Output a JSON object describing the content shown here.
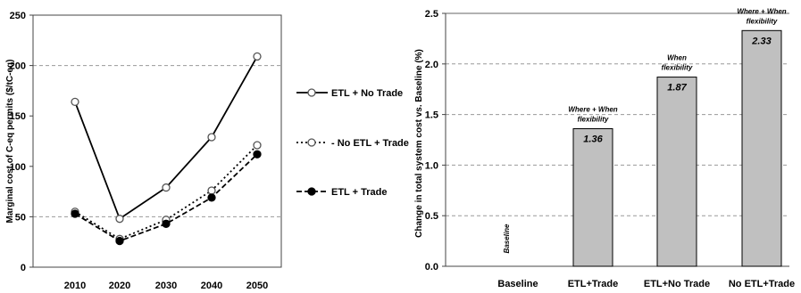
{
  "chart_data": [
    {
      "type": "line",
      "title": "",
      "xlabel": "",
      "ylabel": "Marginal cost of C-eq permits ($/tC-eq)",
      "x": [
        2010,
        2020,
        2030,
        2040,
        2050
      ],
      "x_ticks": [
        "2010",
        "2020",
        "2030",
        "2040",
        "2050"
      ],
      "ylim": [
        0,
        250
      ],
      "y_ticks": [
        "0",
        "50",
        "100",
        "150",
        "200",
        "250"
      ],
      "grid": "horizontal dashed at 50 and 200",
      "legend_position": "right",
      "series": [
        {
          "name": "ETL + No Trade",
          "values": [
            164,
            48,
            79,
            129,
            209
          ],
          "line": "solid",
          "marker": "open circle"
        },
        {
          "name": "- No ETL + Trade",
          "values": [
            55,
            28,
            47,
            76,
            121
          ],
          "line": "dotted",
          "marker": "open circle"
        },
        {
          "name": "ETL + Trade",
          "values": [
            53,
            26,
            43,
            69,
            112
          ],
          "line": "dashed",
          "marker": "filled circle"
        }
      ]
    },
    {
      "type": "bar",
      "title": "",
      "xlabel": "",
      "ylabel": "Change in total system cost vs. Baseline (%)",
      "categories": [
        "Baseline",
        "ETL+Trade",
        "ETL+No Trade",
        "No ETL+Trade"
      ],
      "values": [
        0,
        1.36,
        1.87,
        2.33
      ],
      "value_labels": [
        "",
        "1.36",
        "1.87",
        "2.33"
      ],
      "ylim": [
        0,
        2.5
      ],
      "y_ticks": [
        "0.0",
        "0.5",
        "1.0",
        "1.5",
        "2.0",
        "2.5"
      ],
      "grid": "horizontal dashed",
      "bar_color": "#c0c0c0",
      "annotations": [
        {
          "category": "Baseline",
          "text": [
            "Baseline"
          ],
          "rotated": true
        },
        {
          "category": "ETL+Trade",
          "text": [
            "Where + When",
            "flexibility"
          ]
        },
        {
          "category": "ETL+No Trade",
          "text": [
            "When",
            "flexibility"
          ]
        },
        {
          "category": "No ETL+Trade",
          "text": [
            "Where + When",
            "flexibility"
          ]
        }
      ]
    }
  ]
}
